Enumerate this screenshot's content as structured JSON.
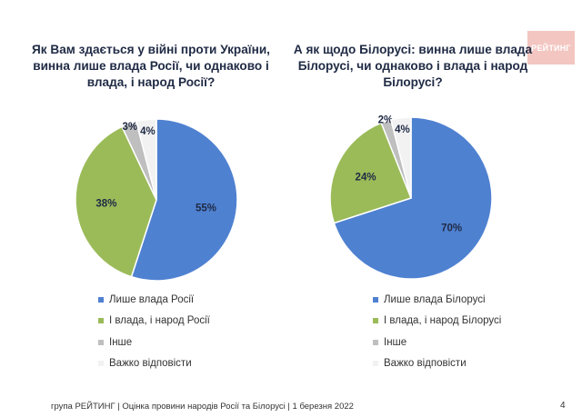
{
  "logo": {
    "text": "РЕЙТИНГ"
  },
  "chart_data": [
    {
      "type": "pie",
      "title": "Як Вам здається у війні проти України, винна лише влада Росії, чи однаково і влада, і народ Росії?",
      "slices": [
        {
          "label": "Лише влада Росії",
          "value": 55,
          "value_label": "55%",
          "color": "#4f81d1"
        },
        {
          "label": "І влада, і народ Росії",
          "value": 38,
          "value_label": "38%",
          "color": "#9bbb59"
        },
        {
          "label": "Інше",
          "value": 3,
          "value_label": "3%",
          "color": "#bfbfbf"
        },
        {
          "label": "Важко відповісти",
          "value": 4,
          "value_label": "4%",
          "color": "#f2f2f2"
        }
      ],
      "legend": "bottom"
    },
    {
      "type": "pie",
      "title": "А як щодо Білорусі: винна лише влада Білорусі, чи однаково і влада і народ Білорусі?",
      "slices": [
        {
          "label": "Лише влада Білорусі",
          "value": 70,
          "value_label": "70%",
          "color": "#4f81d1"
        },
        {
          "label": "І влада, і народ Білорусі",
          "value": 24,
          "value_label": "24%",
          "color": "#9bbb59"
        },
        {
          "label": "Інше",
          "value": 2,
          "value_label": "2%",
          "color": "#bfbfbf"
        },
        {
          "label": "Важко відповісти",
          "value": 4,
          "value_label": "4%",
          "color": "#f2f2f2"
        }
      ],
      "legend": "bottom"
    }
  ],
  "footer": {
    "source": "група РЕЙТИНГ | Оцінка провини народів Росії та Білорусі | 1 березня 2022",
    "page_number": "4"
  }
}
